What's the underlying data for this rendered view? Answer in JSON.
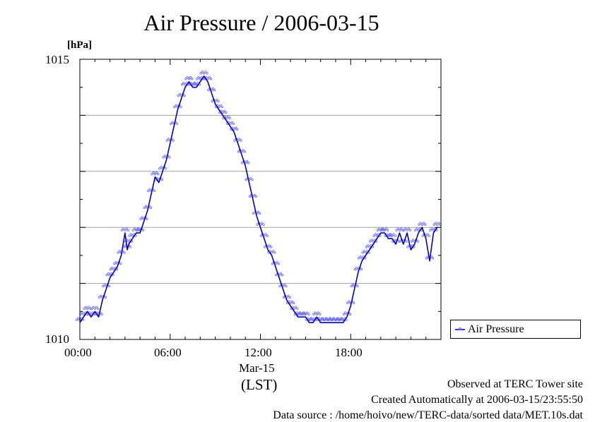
{
  "chart_data": {
    "type": "line",
    "title": "Air Pressure / 2006-03-15",
    "ylabel": "[hPa]",
    "ylim": [
      1010,
      1015
    ],
    "y_tick_labels": [
      "1015",
      "1010"
    ],
    "y_gridlines": [
      1011,
      1012,
      1013,
      1014
    ],
    "xlim": [
      0,
      24
    ],
    "x_tick_labels": [
      "00:00",
      "06:00",
      "12:00",
      "18:00"
    ],
    "x_date_label": "Mar-15",
    "x_unit_label": "(LST)",
    "grid": true,
    "legend_position": "bottom-right",
    "series": [
      {
        "name": "Air Pressure",
        "color": "#0000cc",
        "marker_color": "#6666ff",
        "x": [
          0.0,
          0.25,
          0.5,
          0.75,
          1.0,
          1.25,
          1.5,
          1.75,
          2.0,
          2.25,
          2.5,
          2.75,
          3.0,
          3.15,
          3.25,
          3.5,
          3.75,
          4.0,
          4.25,
          4.5,
          4.75,
          5.0,
          5.25,
          5.5,
          5.75,
          6.0,
          6.25,
          6.5,
          6.75,
          7.0,
          7.25,
          7.5,
          7.75,
          8.0,
          8.25,
          8.5,
          8.75,
          9.0,
          9.25,
          9.5,
          9.75,
          10.0,
          10.25,
          10.5,
          10.75,
          11.0,
          11.25,
          11.5,
          11.75,
          12.0,
          12.25,
          12.5,
          12.75,
          13.0,
          13.25,
          13.5,
          13.75,
          14.0,
          14.25,
          14.5,
          14.75,
          15.0,
          15.25,
          15.5,
          15.75,
          16.0,
          16.25,
          16.5,
          16.75,
          17.0,
          17.25,
          17.5,
          17.75,
          18.0,
          18.25,
          18.5,
          18.75,
          19.0,
          19.25,
          19.5,
          19.75,
          20.0,
          20.25,
          20.5,
          20.75,
          21.0,
          21.25,
          21.5,
          21.75,
          22.0,
          22.25,
          22.5,
          22.75,
          23.0,
          23.25,
          23.5,
          23.75
        ],
        "y": [
          1010.3,
          1010.4,
          1010.5,
          1010.4,
          1010.5,
          1010.4,
          1010.7,
          1010.9,
          1011.1,
          1011.2,
          1011.3,
          1011.5,
          1011.9,
          1011.6,
          1011.7,
          1011.8,
          1011.9,
          1011.9,
          1012.1,
          1012.3,
          1012.6,
          1012.9,
          1012.8,
          1013.0,
          1013.2,
          1013.5,
          1013.8,
          1014.1,
          1014.3,
          1014.5,
          1014.6,
          1014.5,
          1014.5,
          1014.6,
          1014.7,
          1014.6,
          1014.4,
          1014.2,
          1014.1,
          1014.0,
          1013.9,
          1013.8,
          1013.7,
          1013.5,
          1013.3,
          1013.1,
          1012.8,
          1012.5,
          1012.2,
          1012.0,
          1011.8,
          1011.6,
          1011.5,
          1011.3,
          1011.1,
          1010.9,
          1010.7,
          1010.6,
          1010.5,
          1010.4,
          1010.4,
          1010.4,
          1010.3,
          1010.3,
          1010.4,
          1010.3,
          1010.3,
          1010.3,
          1010.3,
          1010.3,
          1010.3,
          1010.3,
          1010.4,
          1010.6,
          1010.9,
          1011.2,
          1011.4,
          1011.5,
          1011.6,
          1011.7,
          1011.8,
          1011.9,
          1011.9,
          1011.8,
          1011.8,
          1011.7,
          1011.9,
          1011.7,
          1011.9,
          1011.6,
          1011.7,
          1011.9,
          1012.0,
          1011.8,
          1011.4,
          1011.9,
          1012.0
        ]
      }
    ]
  },
  "footer": {
    "observed": "Observed at TERC Tower site",
    "created": "Created Automatically at 2006-03-15/23:55:50",
    "source": "Data source : /home/hoivo/new/TERC-data/sorted  data/MET.10s.dat"
  }
}
